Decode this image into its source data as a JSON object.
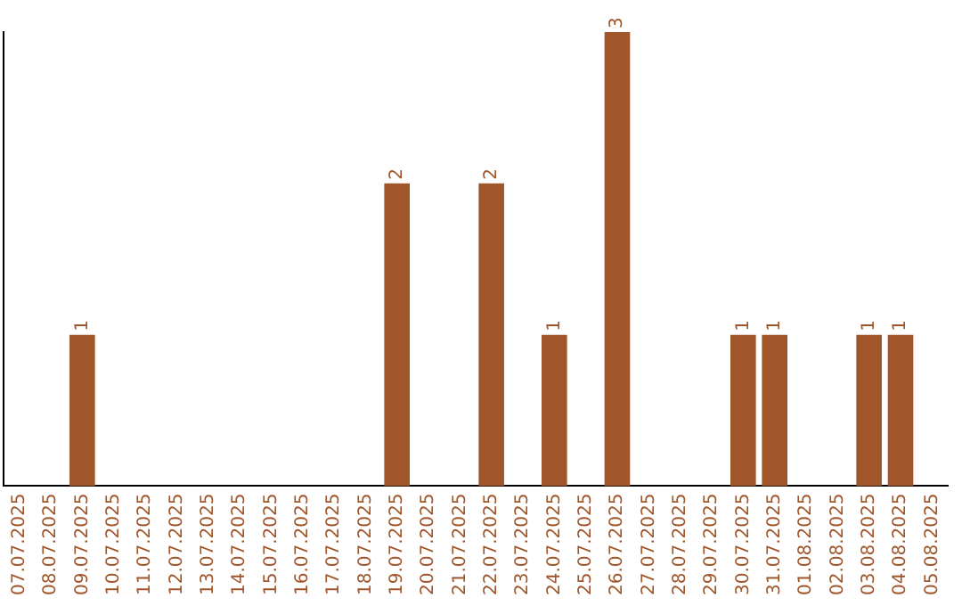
{
  "chart_data": {
    "type": "bar",
    "categories": [
      "07.07.2025",
      "08.07.2025",
      "09.07.2025",
      "10.07.2025",
      "11.07.2025",
      "12.07.2025",
      "13.07.2025",
      "14.07.2025",
      "15.07.2025",
      "16.07.2025",
      "17.07.2025",
      "18.07.2025",
      "19.07.2025",
      "20.07.2025",
      "21.07.2025",
      "22.07.2025",
      "23.07.2025",
      "24.07.2025",
      "25.07.2025",
      "26.07.2025",
      "27.07.2025",
      "28.07.2025",
      "29.07.2025",
      "30.07.2025",
      "31.07.2025",
      "01.08.2025",
      "02.08.2025",
      "03.08.2025",
      "04.08.2025",
      "05.08.2025"
    ],
    "values": [
      0,
      0,
      1,
      0,
      0,
      0,
      0,
      0,
      0,
      0,
      0,
      0,
      2,
      0,
      0,
      2,
      0,
      1,
      0,
      3,
      0,
      0,
      0,
      1,
      1,
      0,
      0,
      1,
      1,
      0
    ],
    "value_labels": [
      null,
      null,
      "1",
      null,
      null,
      null,
      null,
      null,
      null,
      null,
      null,
      null,
      "2",
      null,
      null,
      "2",
      null,
      "1",
      null,
      "3",
      null,
      null,
      null,
      "1",
      "1",
      null,
      null,
      "1",
      "1",
      null
    ],
    "color": "#a0562a",
    "grid": false,
    "legend": false,
    "tick_labels": "x"
  }
}
